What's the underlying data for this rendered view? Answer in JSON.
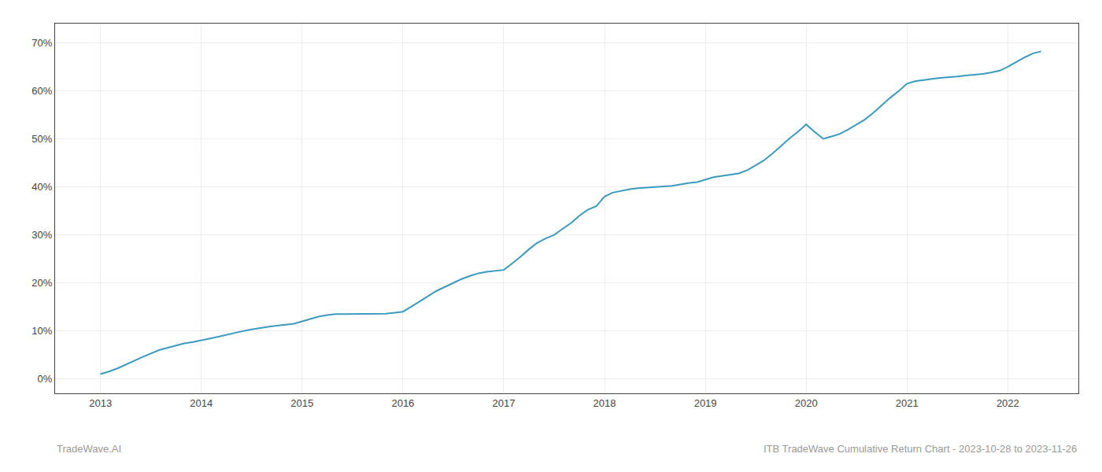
{
  "chart_data": {
    "type": "line",
    "x": [
      2013.0,
      2013.08,
      2013.17,
      2013.25,
      2013.33,
      2013.42,
      2013.5,
      2013.58,
      2013.67,
      2013.75,
      2013.83,
      2013.92,
      2014.0,
      2014.08,
      2014.17,
      2014.25,
      2014.33,
      2014.42,
      2014.5,
      2014.58,
      2014.67,
      2014.75,
      2014.83,
      2014.92,
      2015.0,
      2015.08,
      2015.17,
      2015.25,
      2015.33,
      2015.42,
      2015.5,
      2015.58,
      2015.67,
      2015.75,
      2015.83,
      2015.92,
      2016.0,
      2016.08,
      2016.17,
      2016.25,
      2016.33,
      2016.42,
      2016.5,
      2016.58,
      2016.67,
      2016.75,
      2016.83,
      2016.92,
      2017.0,
      2017.08,
      2017.17,
      2017.25,
      2017.33,
      2017.42,
      2017.5,
      2017.58,
      2017.67,
      2017.75,
      2017.83,
      2017.92,
      2018.0,
      2018.08,
      2018.17,
      2018.25,
      2018.33,
      2018.42,
      2018.5,
      2018.58,
      2018.67,
      2018.75,
      2018.83,
      2018.92,
      2019.0,
      2019.08,
      2019.17,
      2019.25,
      2019.33,
      2019.42,
      2019.5,
      2019.58,
      2019.67,
      2019.75,
      2019.83,
      2019.92,
      2020.0,
      2020.08,
      2020.17,
      2020.25,
      2020.33,
      2020.42,
      2020.5,
      2020.58,
      2020.67,
      2020.75,
      2020.83,
      2020.92,
      2021.0,
      2021.08,
      2021.17,
      2021.25,
      2021.33,
      2021.42,
      2021.5,
      2021.58,
      2021.67,
      2021.75,
      2021.83,
      2021.92,
      2022.0,
      2022.08,
      2022.17,
      2022.25,
      2022.33
    ],
    "values": [
      1.0,
      1.5,
      2.2,
      3.0,
      3.8,
      4.6,
      5.3,
      6.0,
      6.5,
      7.0,
      7.4,
      7.7,
      8.0,
      8.4,
      8.8,
      9.2,
      9.6,
      10.0,
      10.3,
      10.6,
      10.9,
      11.1,
      11.3,
      11.5,
      12.0,
      12.5,
      13.0,
      13.3,
      13.5,
      13.5,
      13.5,
      13.5,
      13.5,
      13.5,
      13.6,
      13.8,
      14.0,
      15.0,
      16.2,
      17.3,
      18.3,
      19.2,
      20.0,
      20.8,
      21.5,
      22.0,
      22.3,
      22.5,
      22.7,
      24.0,
      25.5,
      27.0,
      28.3,
      29.3,
      30.0,
      31.2,
      32.5,
      34.0,
      35.2,
      36.0,
      38.0,
      38.8,
      39.2,
      39.5,
      39.7,
      39.8,
      39.9,
      40.0,
      40.2,
      40.5,
      40.8,
      41.0,
      41.5,
      42.0,
      42.3,
      42.5,
      42.8,
      43.5,
      44.5,
      45.5,
      47.0,
      48.5,
      50.0,
      51.5,
      53.0,
      51.5,
      50.0,
      50.5,
      51.0,
      52.0,
      53.0,
      54.0,
      55.5,
      57.0,
      58.5,
      60.0,
      61.5,
      62.0,
      62.3,
      62.5,
      62.7,
      62.8,
      63.0,
      63.2,
      63.3,
      63.5,
      63.8,
      64.2,
      65.0,
      66.0,
      67.0,
      67.8,
      68.2
    ],
    "color": "#3a9abf",
    "xlim": [
      2012.55,
      2022.7
    ],
    "xticks": [
      2013,
      2014,
      2015,
      2016,
      2017,
      2018,
      2019,
      2020,
      2021,
      2022
    ],
    "ylim": [
      -3,
      74
    ],
    "yticks": [
      {
        "value": 0,
        "label": "0%"
      },
      {
        "value": 10,
        "label": "10%"
      },
      {
        "value": 20,
        "label": "20%"
      },
      {
        "value": 30,
        "label": "30%"
      },
      {
        "value": 40,
        "label": "40%"
      },
      {
        "value": 50,
        "label": "50%"
      },
      {
        "value": 60,
        "label": "60%"
      },
      {
        "value": 70,
        "label": "70%"
      }
    ],
    "grid": true,
    "annotations": [
      "TradeWave.AI",
      "ITB TradeWave Cumulative Return Chart - 2023-10-28 to 2023-11-26"
    ]
  }
}
